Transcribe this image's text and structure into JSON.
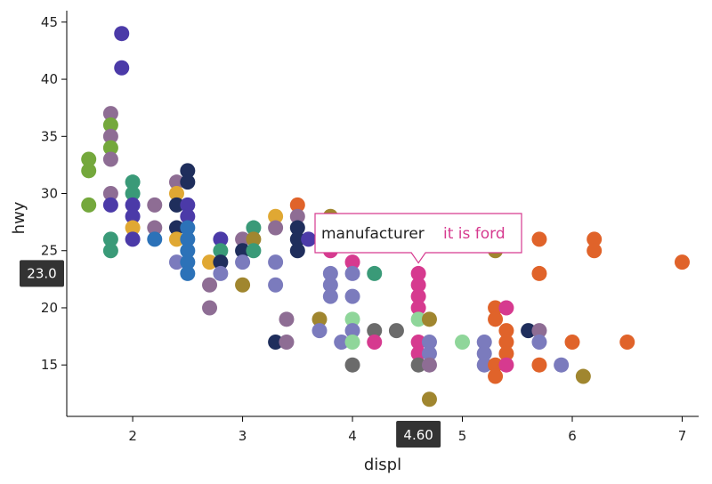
{
  "chart_data": {
    "type": "scatter",
    "xlabel": "displ",
    "ylabel": "hwy",
    "xlim": [
      1.4,
      7.15
    ],
    "ylim": [
      10.5,
      46
    ],
    "xticks": [
      2,
      3,
      4,
      5,
      6,
      7
    ],
    "yticks": [
      15,
      20,
      25,
      30,
      35,
      40,
      45
    ],
    "grid": false,
    "points": [
      {
        "x": 1.9,
        "y": 44,
        "c": "#4b3aa8"
      },
      {
        "x": 1.9,
        "y": 41,
        "c": "#4b3aa8"
      },
      {
        "x": 1.6,
        "y": 33,
        "c": "#74a83c"
      },
      {
        "x": 1.6,
        "y": 32,
        "c": "#74a83c"
      },
      {
        "x": 1.6,
        "y": 29,
        "c": "#74a83c"
      },
      {
        "x": 1.8,
        "y": 37,
        "c": "#8e6d94"
      },
      {
        "x": 1.8,
        "y": 36,
        "c": "#74a83c"
      },
      {
        "x": 1.8,
        "y": 35,
        "c": "#8e6d94"
      },
      {
        "x": 1.8,
        "y": 34,
        "c": "#74a83c"
      },
      {
        "x": 1.8,
        "y": 33,
        "c": "#8e6d94"
      },
      {
        "x": 1.8,
        "y": 30,
        "c": "#8e6d94"
      },
      {
        "x": 1.8,
        "y": 29,
        "c": "#4b3aa8"
      },
      {
        "x": 1.8,
        "y": 26,
        "c": "#3a9a78"
      },
      {
        "x": 1.8,
        "y": 25,
        "c": "#3a9a78"
      },
      {
        "x": 2.0,
        "y": 31,
        "c": "#3a9a78"
      },
      {
        "x": 2.0,
        "y": 30,
        "c": "#3a9a78"
      },
      {
        "x": 2.0,
        "y": 29,
        "c": "#4b3aa8"
      },
      {
        "x": 2.0,
        "y": 28,
        "c": "#4b3aa8"
      },
      {
        "x": 2.0,
        "y": 27,
        "c": "#e0a833"
      },
      {
        "x": 2.0,
        "y": 26,
        "c": "#4b3aa8"
      },
      {
        "x": 2.2,
        "y": 29,
        "c": "#8e6d94"
      },
      {
        "x": 2.2,
        "y": 27,
        "c": "#8e6d94"
      },
      {
        "x": 2.2,
        "y": 26,
        "c": "#2c72b8"
      },
      {
        "x": 2.4,
        "y": 31,
        "c": "#8e6d94"
      },
      {
        "x": 2.4,
        "y": 30,
        "c": "#e0a833"
      },
      {
        "x": 2.4,
        "y": 29,
        "c": "#1f2e5c"
      },
      {
        "x": 2.4,
        "y": 27,
        "c": "#1f2e5c"
      },
      {
        "x": 2.4,
        "y": 26,
        "c": "#e0a833"
      },
      {
        "x": 2.4,
        "y": 24,
        "c": "#7b7bbd"
      },
      {
        "x": 2.5,
        "y": 32,
        "c": "#1f2e5c"
      },
      {
        "x": 2.5,
        "y": 31,
        "c": "#1f2e5c"
      },
      {
        "x": 2.5,
        "y": 29,
        "c": "#4b3aa8"
      },
      {
        "x": 2.5,
        "y": 28,
        "c": "#4b3aa8"
      },
      {
        "x": 2.5,
        "y": 27,
        "c": "#2c72b8"
      },
      {
        "x": 2.5,
        "y": 26,
        "c": "#2c72b8"
      },
      {
        "x": 2.5,
        "y": 25,
        "c": "#2c72b8"
      },
      {
        "x": 2.5,
        "y": 24,
        "c": "#2c72b8"
      },
      {
        "x": 2.5,
        "y": 23,
        "c": "#2c72b8"
      },
      {
        "x": 2.7,
        "y": 24,
        "c": "#e0a833"
      },
      {
        "x": 2.7,
        "y": 22,
        "c": "#8e6d94"
      },
      {
        "x": 2.7,
        "y": 20,
        "c": "#8e6d94"
      },
      {
        "x": 2.8,
        "y": 26,
        "c": "#4b3aa8"
      },
      {
        "x": 2.8,
        "y": 25,
        "c": "#3a9a78"
      },
      {
        "x": 2.8,
        "y": 24,
        "c": "#1f2e5c"
      },
      {
        "x": 2.8,
        "y": 23,
        "c": "#7b7bbd"
      },
      {
        "x": 3.0,
        "y": 26,
        "c": "#8e6d94"
      },
      {
        "x": 3.0,
        "y": 25,
        "c": "#1f2e5c"
      },
      {
        "x": 3.0,
        "y": 24,
        "c": "#7b7bbd"
      },
      {
        "x": 3.0,
        "y": 22,
        "c": "#a0862f"
      },
      {
        "x": 3.1,
        "y": 27,
        "c": "#3a9a78"
      },
      {
        "x": 3.1,
        "y": 26,
        "c": "#a0862f"
      },
      {
        "x": 3.1,
        "y": 25,
        "c": "#3a9a78"
      },
      {
        "x": 3.3,
        "y": 28,
        "c": "#e0a833"
      },
      {
        "x": 3.3,
        "y": 27,
        "c": "#8e6d94"
      },
      {
        "x": 3.3,
        "y": 24,
        "c": "#7b7bbd"
      },
      {
        "x": 3.3,
        "y": 22,
        "c": "#7b7bbd"
      },
      {
        "x": 3.3,
        "y": 17,
        "c": "#1f2e5c"
      },
      {
        "x": 3.4,
        "y": 19,
        "c": "#8e6d94"
      },
      {
        "x": 3.4,
        "y": 17,
        "c": "#8e6d94"
      },
      {
        "x": 3.5,
        "y": 29,
        "c": "#e0632a"
      },
      {
        "x": 3.5,
        "y": 28,
        "c": "#8e6d94"
      },
      {
        "x": 3.5,
        "y": 27,
        "c": "#1f2e5c"
      },
      {
        "x": 3.5,
        "y": 26,
        "c": "#1f2e5c"
      },
      {
        "x": 3.5,
        "y": 25,
        "c": "#1f2e5c"
      },
      {
        "x": 3.6,
        "y": 26,
        "c": "#4b3aa8"
      },
      {
        "x": 3.7,
        "y": 19,
        "c": "#a0862f"
      },
      {
        "x": 3.7,
        "y": 18,
        "c": "#7b7bbd"
      },
      {
        "x": 3.8,
        "y": 28,
        "c": "#a0862f"
      },
      {
        "x": 3.8,
        "y": 25,
        "c": "#d63a8f"
      },
      {
        "x": 3.8,
        "y": 23,
        "c": "#7b7bbd"
      },
      {
        "x": 3.8,
        "y": 22,
        "c": "#7b7bbd"
      },
      {
        "x": 3.8,
        "y": 21,
        "c": "#7b7bbd"
      },
      {
        "x": 3.9,
        "y": 17,
        "c": "#7b7bbd"
      },
      {
        "x": 4.0,
        "y": 24,
        "c": "#d63a8f"
      },
      {
        "x": 4.0,
        "y": 23,
        "c": "#7b7bbd"
      },
      {
        "x": 4.0,
        "y": 21,
        "c": "#7b7bbd"
      },
      {
        "x": 4.0,
        "y": 19,
        "c": "#8fd69a"
      },
      {
        "x": 4.0,
        "y": 18,
        "c": "#7b7bbd"
      },
      {
        "x": 4.0,
        "y": 17,
        "c": "#8fd69a"
      },
      {
        "x": 4.0,
        "y": 15,
        "c": "#6b6b6b"
      },
      {
        "x": 4.2,
        "y": 23,
        "c": "#3a9a78"
      },
      {
        "x": 4.2,
        "y": 18,
        "c": "#6b6b6b"
      },
      {
        "x": 4.2,
        "y": 17,
        "c": "#d63a8f"
      },
      {
        "x": 4.4,
        "y": 18,
        "c": "#6b6b6b"
      },
      {
        "x": 4.6,
        "y": 23,
        "c": "#d63a8f"
      },
      {
        "x": 4.6,
        "y": 22,
        "c": "#d63a8f"
      },
      {
        "x": 4.6,
        "y": 21,
        "c": "#d63a8f"
      },
      {
        "x": 4.6,
        "y": 20,
        "c": "#d63a8f"
      },
      {
        "x": 4.6,
        "y": 19,
        "c": "#8fd69a"
      },
      {
        "x": 4.6,
        "y": 17,
        "c": "#d63a8f"
      },
      {
        "x": 4.6,
        "y": 16,
        "c": "#d63a8f"
      },
      {
        "x": 4.6,
        "y": 15,
        "c": "#6b6b6b"
      },
      {
        "x": 4.7,
        "y": 19,
        "c": "#a0862f"
      },
      {
        "x": 4.7,
        "y": 17,
        "c": "#7b7bbd"
      },
      {
        "x": 4.7,
        "y": 16,
        "c": "#7b7bbd"
      },
      {
        "x": 4.7,
        "y": 15,
        "c": "#8e6d94"
      },
      {
        "x": 4.7,
        "y": 12,
        "c": "#a0862f"
      },
      {
        "x": 5.0,
        "y": 17,
        "c": "#8fd69a"
      },
      {
        "x": 5.2,
        "y": 17,
        "c": "#7b7bbd"
      },
      {
        "x": 5.2,
        "y": 16,
        "c": "#7b7bbd"
      },
      {
        "x": 5.2,
        "y": 15,
        "c": "#7b7bbd"
      },
      {
        "x": 5.3,
        "y": 25,
        "c": "#a0862f"
      },
      {
        "x": 5.3,
        "y": 20,
        "c": "#e0632a"
      },
      {
        "x": 5.3,
        "y": 19,
        "c": "#e0632a"
      },
      {
        "x": 5.3,
        "y": 15,
        "c": "#e0632a"
      },
      {
        "x": 5.3,
        "y": 14,
        "c": "#e0632a"
      },
      {
        "x": 5.4,
        "y": 20,
        "c": "#d63a8f"
      },
      {
        "x": 5.4,
        "y": 18,
        "c": "#e0632a"
      },
      {
        "x": 5.4,
        "y": 17,
        "c": "#e0632a"
      },
      {
        "x": 5.4,
        "y": 16,
        "c": "#e0632a"
      },
      {
        "x": 5.4,
        "y": 15,
        "c": "#d63a8f"
      },
      {
        "x": 5.6,
        "y": 18,
        "c": "#1f2e5c"
      },
      {
        "x": 5.7,
        "y": 26,
        "c": "#e0632a"
      },
      {
        "x": 5.7,
        "y": 23,
        "c": "#e0632a"
      },
      {
        "x": 5.7,
        "y": 18,
        "c": "#8e6d94"
      },
      {
        "x": 5.7,
        "y": 17,
        "c": "#7b7bbd"
      },
      {
        "x": 5.7,
        "y": 15,
        "c": "#e0632a"
      },
      {
        "x": 5.9,
        "y": 15,
        "c": "#7b7bbd"
      },
      {
        "x": 6.0,
        "y": 17,
        "c": "#e0632a"
      },
      {
        "x": 6.1,
        "y": 14,
        "c": "#a0862f"
      },
      {
        "x": 6.2,
        "y": 26,
        "c": "#e0632a"
      },
      {
        "x": 6.2,
        "y": 25,
        "c": "#e0632a"
      },
      {
        "x": 6.5,
        "y": 17,
        "c": "#e0632a"
      },
      {
        "x": 7.0,
        "y": 24,
        "c": "#e0632a"
      }
    ],
    "crosshair": {
      "x_label": "4.60",
      "y_label": "23.0"
    },
    "tooltip": {
      "key": "manufacturer",
      "value": "it is ford",
      "value_color": "#d63a8f",
      "anchor_x": 4.6,
      "anchor_y": 23
    }
  }
}
